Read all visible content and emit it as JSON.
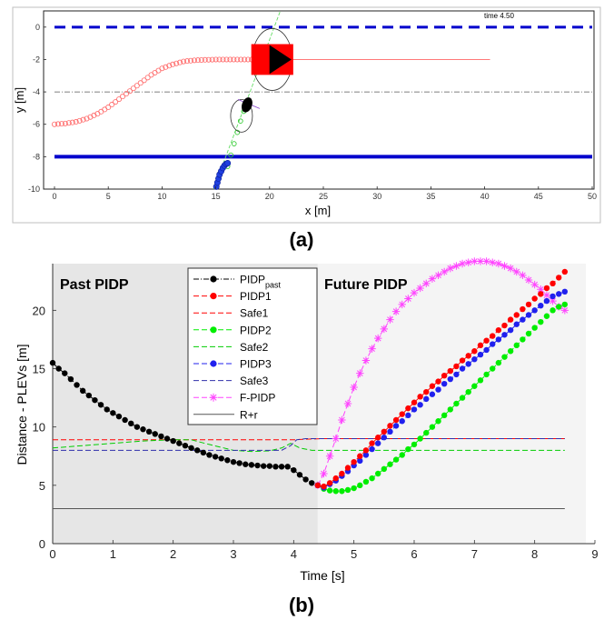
{
  "figure_labels": {
    "a": "(a)",
    "b": "(b)"
  },
  "chart_data": [
    {
      "type": "scatter",
      "panel": "(a)",
      "annotation": "time 4.50",
      "xlabel": "x [m]",
      "ylabel": "y [m]",
      "xlim": [
        0,
        50
      ],
      "ylim": [
        -10,
        1
      ],
      "xticks": [
        0,
        5,
        10,
        15,
        20,
        25,
        30,
        35,
        40,
        45,
        50
      ],
      "yticks": [
        0,
        -2,
        -4,
        -6,
        -8,
        -10
      ],
      "grid": false,
      "colors": {
        "road_edge": "#0000cc",
        "red_vehicle": "#ff0000",
        "red_trace": "#ff6666",
        "green_trace": "#33cc33",
        "blue_trace": "#1f3fe0",
        "center_line": "#555555"
      },
      "elements": {
        "top_boundary": {
          "y": 0,
          "x": [
            0,
            50
          ],
          "style": "dashed"
        },
        "bottom_boundary": {
          "y": -8,
          "x": [
            0,
            50
          ],
          "style": "solid"
        },
        "center_line": {
          "y": -4,
          "x": [
            0,
            50
          ],
          "style": "dashdot"
        },
        "red_vehicle": {
          "x": [
            18.3,
            22.2
          ],
          "y": [
            -2.95,
            -1.05
          ]
        },
        "black_vehicle": {
          "cx": 17.9,
          "cy": -4.8
        },
        "red_trace": {
          "x": [
            0,
            1,
            2,
            3,
            4,
            5,
            6,
            7,
            8,
            9,
            10,
            11,
            12,
            13,
            14,
            15,
            16,
            17,
            18,
            19
          ],
          "y": [
            -6,
            -5.95,
            -5.85,
            -5.65,
            -5.35,
            -4.95,
            -4.45,
            -3.95,
            -3.45,
            -2.95,
            -2.55,
            -2.3,
            -2.12,
            -2.05,
            -2.02,
            -2.0,
            -2.0,
            -2.0,
            -2.0,
            -2.0
          ]
        },
        "green_trace": {
          "x": [
            16.1,
            16.4,
            16.7,
            17.0,
            17.3,
            17.6
          ],
          "y": [
            -8.6,
            -7.9,
            -7.2,
            -6.5,
            -5.8,
            -5.2
          ]
        },
        "blue_trace": {
          "x": [
            15.05,
            15.15,
            15.25,
            15.35,
            15.5,
            15.65,
            15.8,
            15.95,
            16.1
          ],
          "y": [
            -9.85,
            -9.6,
            -9.35,
            -9.1,
            -8.9,
            -8.7,
            -8.55,
            -8.45,
            -8.4
          ]
        }
      }
    },
    {
      "type": "line",
      "panel": "(b)",
      "xlabel": "Time [s]",
      "ylabel": "Distance - PLEVs [m]",
      "xlim": [
        0,
        9
      ],
      "ylim": [
        0,
        24
      ],
      "xticks": [
        0,
        1,
        2,
        3,
        4,
        5,
        6,
        7,
        8,
        9
      ],
      "yticks": [
        0,
        5,
        10,
        15,
        20
      ],
      "grid": false,
      "legend_position": "top-center",
      "region_labels": {
        "past": "Past PIDP",
        "future": "Future PIDP"
      },
      "regions": {
        "past": [
          0,
          4.4
        ],
        "future": [
          4.4,
          8.85
        ]
      },
      "series": [
        {
          "name": "PIDP",
          "name_sub": "past",
          "color": "#000000",
          "style": "dash-dot-marker",
          "x": [
            0,
            0.1,
            0.2,
            0.3,
            0.4,
            0.5,
            0.6,
            0.7,
            0.8,
            0.9,
            1.0,
            1.1,
            1.2,
            1.3,
            1.4,
            1.5,
            1.6,
            1.7,
            1.8,
            1.9,
            2.0,
            2.1,
            2.2,
            2.3,
            2.4,
            2.5,
            2.6,
            2.7,
            2.8,
            2.9,
            3.0,
            3.1,
            3.2,
            3.3,
            3.4,
            3.5,
            3.6,
            3.7,
            3.8,
            3.9,
            4.0,
            4.1,
            4.2,
            4.3,
            4.4
          ],
          "y": [
            15.5,
            15.0,
            14.6,
            14.1,
            13.6,
            13.1,
            12.7,
            12.3,
            11.9,
            11.5,
            11.2,
            10.9,
            10.6,
            10.3,
            10.0,
            9.8,
            9.6,
            9.4,
            9.2,
            9.0,
            8.8,
            8.6,
            8.4,
            8.2,
            8.0,
            7.8,
            7.6,
            7.45,
            7.3,
            7.15,
            7.0,
            6.9,
            6.8,
            6.75,
            6.7,
            6.65,
            6.65,
            6.6,
            6.6,
            6.6,
            6.3,
            5.9,
            5.5,
            5.2,
            5.0
          ]
        },
        {
          "name": "PIDP1",
          "color": "#ff0000",
          "style": "dashed-marker",
          "x": [
            4.4,
            4.5,
            4.6,
            4.7,
            4.8,
            4.9,
            5.0,
            5.1,
            5.2,
            5.3,
            5.4,
            5.5,
            5.6,
            5.7,
            5.8,
            5.9,
            6.0,
            6.1,
            6.2,
            6.3,
            6.4,
            6.5,
            6.6,
            6.7,
            6.8,
            6.9,
            7.0,
            7.1,
            7.2,
            7.3,
            7.4,
            7.5,
            7.6,
            7.7,
            7.8,
            7.9,
            8.0,
            8.1,
            8.2,
            8.3,
            8.4,
            8.5
          ],
          "y": [
            5.0,
            4.9,
            5.2,
            5.6,
            6.0,
            6.5,
            7.0,
            7.5,
            8.0,
            8.6,
            9.1,
            9.6,
            10.1,
            10.6,
            11.1,
            11.6,
            12.1,
            12.6,
            13.0,
            13.5,
            13.9,
            14.4,
            14.8,
            15.2,
            15.7,
            16.1,
            16.5,
            17.0,
            17.4,
            17.8,
            18.3,
            18.7,
            19.2,
            19.6,
            20.1,
            20.5,
            21.0,
            21.4,
            21.9,
            22.3,
            22.8,
            23.3
          ]
        },
        {
          "name": "Safe1",
          "color": "#ff0000",
          "style": "dashed",
          "x": [
            0,
            1,
            2,
            2.5,
            3.0,
            3.5,
            3.8,
            4.0,
            4.2,
            4.5,
            5,
            6,
            7,
            8,
            8.5
          ],
          "y": [
            8.9,
            8.9,
            8.9,
            8.9,
            8.9,
            8.9,
            8.9,
            8.9,
            8.95,
            9.0,
            9.0,
            9.0,
            9.0,
            9.0,
            9.0
          ]
        },
        {
          "name": "PIDP2",
          "color": "#00ee00",
          "style": "dashed-marker",
          "x": [
            4.4,
            4.5,
            4.6,
            4.7,
            4.8,
            4.9,
            5.0,
            5.1,
            5.2,
            5.3,
            5.4,
            5.5,
            5.6,
            5.7,
            5.8,
            5.9,
            6.0,
            6.1,
            6.2,
            6.3,
            6.4,
            6.5,
            6.6,
            6.7,
            6.8,
            6.9,
            7.0,
            7.1,
            7.2,
            7.3,
            7.4,
            7.5,
            7.6,
            7.7,
            7.8,
            7.9,
            8.0,
            8.1,
            8.2,
            8.3,
            8.4,
            8.5
          ],
          "y": [
            5.0,
            4.7,
            4.55,
            4.5,
            4.5,
            4.6,
            4.75,
            5.0,
            5.3,
            5.6,
            6.0,
            6.4,
            6.8,
            7.2,
            7.6,
            8.1,
            8.5,
            9.0,
            9.5,
            10.0,
            10.5,
            11.0,
            11.5,
            12.0,
            12.5,
            13.0,
            13.5,
            14.0,
            14.5,
            15.0,
            15.5,
            16.0,
            16.5,
            17.0,
            17.5,
            18.0,
            18.5,
            19.0,
            19.5,
            20.0,
            20.3,
            20.5
          ]
        },
        {
          "name": "Safe2",
          "color": "#00cc00",
          "style": "dashed",
          "x": [
            0,
            0.5,
            1.0,
            1.5,
            2.0,
            2.3,
            2.6,
            3.0,
            3.3,
            3.6,
            3.8,
            3.95,
            4.1,
            4.3,
            5,
            6,
            7,
            8,
            8.5
          ],
          "y": [
            8.2,
            8.4,
            8.6,
            8.8,
            8.9,
            8.9,
            8.5,
            8.0,
            7.9,
            7.95,
            8.2,
            8.6,
            8.2,
            8.0,
            8.0,
            8.0,
            8.0,
            8.0,
            8.0
          ]
        },
        {
          "name": "PIDP3",
          "color": "#2020ee",
          "style": "dashed-marker",
          "x": [
            4.4,
            4.5,
            4.6,
            4.7,
            4.8,
            4.9,
            5.0,
            5.1,
            5.2,
            5.3,
            5.4,
            5.5,
            5.6,
            5.7,
            5.8,
            5.9,
            6.0,
            6.1,
            6.2,
            6.3,
            6.4,
            6.5,
            6.6,
            6.7,
            6.8,
            6.9,
            7.0,
            7.1,
            7.2,
            7.3,
            7.4,
            7.5,
            7.6,
            7.7,
            7.8,
            7.9,
            8.0,
            8.1,
            8.2,
            8.3,
            8.4,
            8.5
          ],
          "y": [
            5.0,
            4.8,
            5.1,
            5.4,
            5.8,
            6.2,
            6.7,
            7.1,
            7.6,
            8.1,
            8.6,
            9.1,
            9.6,
            10.1,
            10.5,
            11.0,
            11.5,
            11.9,
            12.4,
            12.8,
            13.2,
            13.7,
            14.1,
            14.5,
            15.0,
            15.4,
            15.8,
            16.2,
            16.6,
            17.1,
            17.5,
            17.9,
            18.3,
            18.8,
            19.2,
            19.6,
            20.0,
            20.4,
            20.8,
            21.2,
            21.4,
            21.6
          ]
        },
        {
          "name": "Safe3",
          "color": "#3030aa",
          "style": "dashed",
          "x": [
            0,
            1,
            2,
            3,
            3.5,
            3.8,
            3.95,
            4.05,
            4.2,
            5,
            6,
            7,
            8,
            8.5
          ],
          "y": [
            8.0,
            8.0,
            8.0,
            8.0,
            8.0,
            8.0,
            8.4,
            8.9,
            9.0,
            9.0,
            9.0,
            9.0,
            9.0,
            9.0
          ]
        },
        {
          "name": "F-PIDP",
          "color": "#ff44ff",
          "style": "dashed-star",
          "x": [
            4.4,
            4.5,
            4.6,
            4.7,
            4.8,
            4.9,
            5.0,
            5.1,
            5.2,
            5.3,
            5.4,
            5.5,
            5.6,
            5.7,
            5.8,
            5.9,
            6.0,
            6.1,
            6.2,
            6.3,
            6.4,
            6.5,
            6.6,
            6.7,
            6.8,
            6.9,
            7.0,
            7.1,
            7.2,
            7.3,
            7.4,
            7.5,
            7.6,
            7.7,
            7.8,
            7.9,
            8.0,
            8.1,
            8.2,
            8.3,
            8.4,
            8.5
          ],
          "y": [
            5.0,
            6.0,
            7.5,
            9.0,
            10.6,
            12.0,
            13.4,
            14.6,
            15.7,
            16.7,
            17.6,
            18.4,
            19.2,
            19.9,
            20.5,
            21.0,
            21.5,
            21.9,
            22.3,
            22.7,
            23.0,
            23.3,
            23.6,
            23.8,
            24.0,
            24.1,
            24.2,
            24.2,
            24.2,
            24.1,
            24.0,
            23.8,
            23.6,
            23.3,
            23.0,
            22.6,
            22.2,
            21.8,
            21.3,
            20.8,
            20.3,
            20.0
          ]
        },
        {
          "name": "R+r",
          "color": "#555555",
          "style": "solid",
          "x": [
            0,
            8.5
          ],
          "y": [
            3.0,
            3.0
          ]
        }
      ]
    }
  ]
}
